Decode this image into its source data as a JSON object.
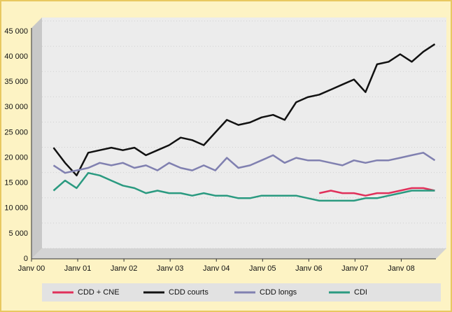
{
  "chart_data": {
    "type": "line",
    "x": [
      2000.25,
      2000.5,
      2000.75,
      2001,
      2001.25,
      2001.5,
      2001.75,
      2002,
      2002.25,
      2002.5,
      2002.75,
      2003,
      2003.25,
      2003.5,
      2003.75,
      2004,
      2004.25,
      2004.5,
      2004.75,
      2005,
      2005.25,
      2005.5,
      2005.75,
      2006,
      2006.25,
      2006.5,
      2006.75,
      2007,
      2007.25,
      2007.5,
      2007.75,
      2008,
      2008.25,
      2008.5
    ],
    "series": [
      {
        "name": "CDD + CNE",
        "color": "#e0305a",
        "values": [
          null,
          null,
          null,
          null,
          null,
          null,
          null,
          null,
          null,
          null,
          null,
          null,
          null,
          null,
          null,
          null,
          null,
          null,
          null,
          null,
          null,
          null,
          null,
          13000,
          13500,
          13000,
          13000,
          12500,
          13000,
          13000,
          13500,
          14000,
          14000,
          13500
        ]
      },
      {
        "name": "CDD courts",
        "color": "#111111",
        "values": [
          22000,
          19000,
          16500,
          21000,
          21500,
          22000,
          21500,
          22000,
          20500,
          21500,
          22500,
          24000,
          23500,
          22500,
          25000,
          27500,
          26500,
          27000,
          28000,
          28500,
          27500,
          31000,
          32000,
          32500,
          33500,
          34500,
          35500,
          33000,
          38500,
          39000,
          40500,
          39000,
          41000,
          42500
        ]
      },
      {
        "name": "CDD longs",
        "color": "#8080b0",
        "values": [
          18500,
          17000,
          17500,
          18000,
          19000,
          18500,
          19000,
          18000,
          18500,
          17500,
          19000,
          18000,
          17500,
          18500,
          17500,
          20000,
          18000,
          18500,
          19500,
          20500,
          19000,
          20000,
          19500,
          19500,
          19000,
          18500,
          19500,
          19000,
          19500,
          19500,
          20000,
          20500,
          21000,
          19500
        ]
      },
      {
        "name": "CDI",
        "color": "#2a9a80",
        "values": [
          13500,
          15500,
          14000,
          17000,
          16500,
          15500,
          14500,
          14000,
          13000,
          13500,
          13000,
          13000,
          12500,
          13000,
          12500,
          12500,
          12000,
          12000,
          12500,
          12500,
          12500,
          12500,
          12000,
          11500,
          11500,
          11500,
          11500,
          12000,
          12000,
          12500,
          13000,
          13500,
          13500,
          13500
        ]
      }
    ],
    "xlim": [
      2000,
      2008.75
    ],
    "xticks": [
      {
        "value": 2000,
        "label": "Janv 00"
      },
      {
        "value": 2001,
        "label": "Janv 01"
      },
      {
        "value": 2002,
        "label": "Janv 02"
      },
      {
        "value": 2003,
        "label": "Janv 03"
      },
      {
        "value": 2004,
        "label": "Janv 04"
      },
      {
        "value": 2005,
        "label": "Janv 05"
      },
      {
        "value": 2006,
        "label": "Janv 06"
      },
      {
        "value": 2007,
        "label": "Janv 07"
      },
      {
        "value": 2008,
        "label": "Janv 08"
      }
    ],
    "ylim": [
      0,
      45000
    ],
    "yticks": [
      0,
      {
        "value": 5000,
        "label": "5 000"
      },
      {
        "value": 10000,
        "label": "10 000"
      },
      {
        "value": 15000,
        "label": "15 000"
      },
      {
        "value": 20000,
        "label": "20 000"
      },
      {
        "value": 25000,
        "label": "25 000"
      },
      {
        "value": 30000,
        "label": "30 000"
      },
      {
        "value": 35000,
        "label": "35 000"
      },
      {
        "value": 40000,
        "label": "40 000"
      },
      {
        "value": 45000,
        "label": "45 000"
      }
    ],
    "grid": true,
    "legend": "bottom"
  }
}
